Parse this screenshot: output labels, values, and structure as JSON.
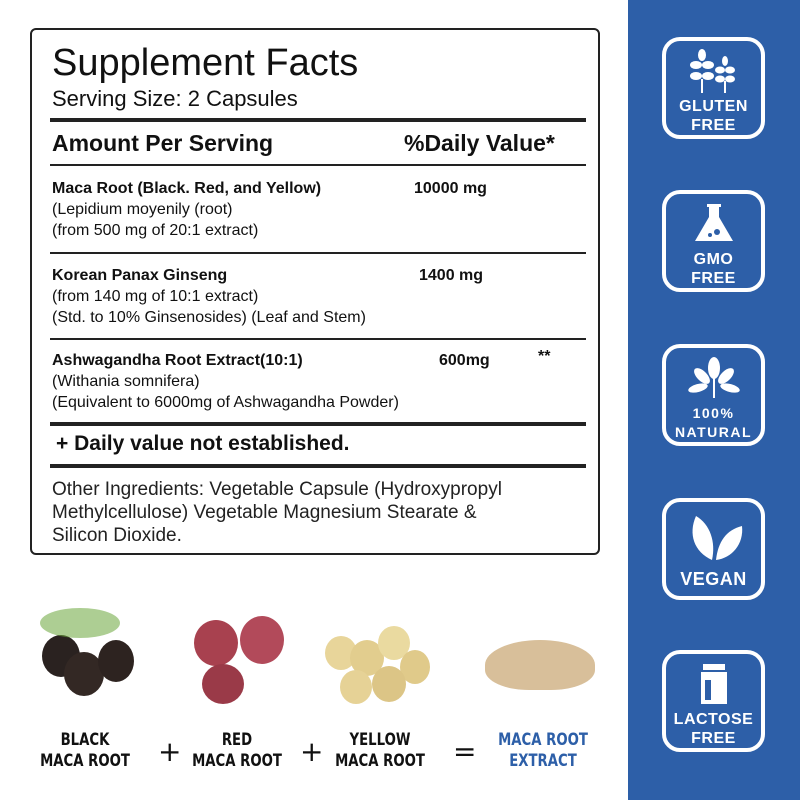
{
  "facts": {
    "title": "Supplement Facts",
    "serving": "Serving Size: 2 Capsules",
    "header_left": "Amount Per Serving",
    "header_right": "%Daily Value*",
    "rows": [
      {
        "name": "Maca Root (Black. Red, and Yellow)",
        "amount": "10000 mg",
        "dv": "",
        "lines": [
          "(Lepidium moyenily (root)",
          "(from 500 mg of 20:1 extract)"
        ]
      },
      {
        "name": "Korean Panax Ginseng",
        "amount": "1400 mg",
        "dv": "",
        "lines": [
          "(from 140 mg of 10:1 extract)",
          "(Std. to 10% Ginsenosides) (Leaf and Stem)"
        ]
      },
      {
        "name": "Ashwagandha Root Extract(10:1)",
        "amount": "600mg",
        "dv": "**",
        "lines": [
          "(Withania somnifera)",
          "(Equivalent to 6000mg of Ashwagandha Powder)"
        ]
      }
    ],
    "footnote": "+ Daily value not established.",
    "other": [
      "Other Ingredients: Vegetable Capsule (Hydroxypropyl",
      "Methylcellulose) Vegetable Magnesium Stearate &",
      "Silicon Dioxide."
    ]
  },
  "badges": [
    {
      "icon": "wheat-icon",
      "lines": [
        "GLUTEN",
        "FREE"
      ]
    },
    {
      "icon": "flask-icon",
      "lines": [
        "GMO",
        "FREE"
      ]
    },
    {
      "icon": "plant-icon",
      "lines": [
        "100%",
        "NATURAL"
      ]
    },
    {
      "icon": "leaves-icon",
      "lines": [
        "VEGAN"
      ]
    },
    {
      "icon": "milk-carton-icon",
      "lines": [
        "LACTOSE",
        "FREE"
      ]
    }
  ],
  "equation": {
    "items": [
      [
        "BLACK",
        "MACA ROOT"
      ],
      [
        "RED",
        "MACA ROOT"
      ],
      [
        "YELLOW",
        "MACA ROOT"
      ],
      [
        "MACA ROOT",
        "EXTRACT"
      ]
    ],
    "plus": "+",
    "equals": "=",
    "result_color": "#2d5fa8"
  },
  "colors": {
    "panel": "#2d5fa8"
  }
}
